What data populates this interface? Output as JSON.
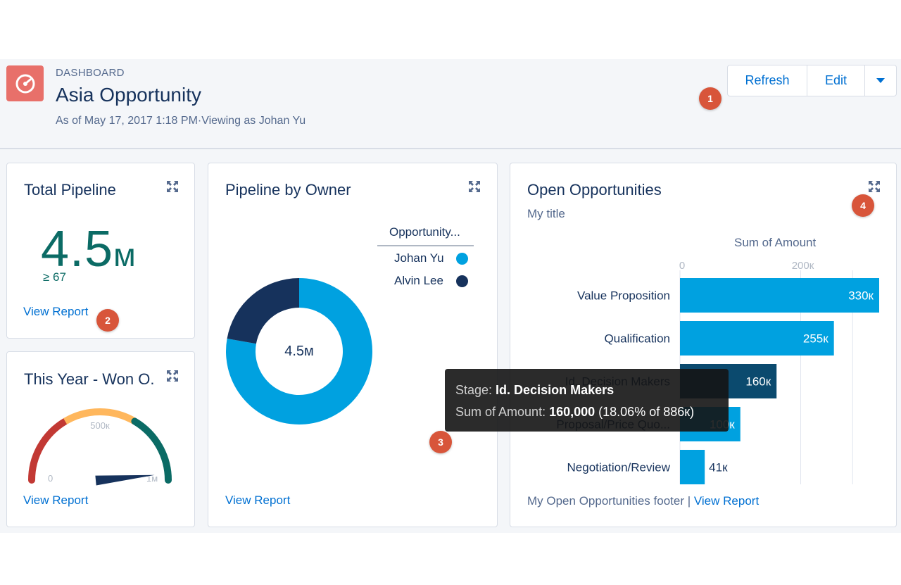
{
  "header": {
    "eyebrow": "DASHBOARD",
    "title": "Asia Opportunity",
    "subtitle": "As of May 17, 2017 1:18 PM·Viewing as Johan Yu",
    "buttons": {
      "refresh": "Refresh",
      "edit": "Edit"
    }
  },
  "badges": [
    "1",
    "2",
    "3",
    "4"
  ],
  "cards": {
    "total_pipeline": {
      "title": "Total Pipeline",
      "value": "4.5",
      "unit": "м",
      "sub_value": "≥ 67",
      "link": "View Report"
    },
    "won": {
      "title": "This Year - Won O.",
      "link": "View Report",
      "gauge": {
        "min_label": "0",
        "mid_label": "500к",
        "max_label": "1м",
        "value_fraction": 0.97
      }
    },
    "pipeline_by_owner": {
      "title": "Pipeline by Owner",
      "center_label": "4.5м",
      "legend_title": "Opportunity...",
      "link": "View Report"
    },
    "open_opps": {
      "title": "Open Opportunities",
      "subtitle": "My title",
      "footer": "My Open Opportunities footer | ",
      "link": "View Report"
    }
  },
  "tooltip": {
    "stage_label": "Stage: ",
    "stage_value": "Id. Decision Makers",
    "sum_label": "Sum of Amount: ",
    "sum_value": "160,000",
    "sum_note": " (18.06% of 886к)"
  },
  "colors": {
    "accent": "#0070d2",
    "bar": "#00a1e0",
    "bar_dark": "#16325c",
    "teal": "#0b6b65",
    "badge": "#d8553a",
    "dashboard_icon": "#e8706a"
  },
  "chart_data": [
    {
      "type": "pie",
      "donut": true,
      "title": "Pipeline by Owner",
      "legend_title": "Opportunity...",
      "legend_position": "top-right",
      "series": [
        {
          "name": "Johan Yu",
          "value": 3.5,
          "color": "#00a1e0"
        },
        {
          "name": "Alvin Lee",
          "value": 1.0,
          "color": "#16325c"
        }
      ],
      "center_label": "4.5м"
    },
    {
      "type": "bar",
      "orientation": "horizontal",
      "title": "Open Opportunities",
      "xlabel": "Sum of Amount",
      "ticks": [
        "0",
        "200к"
      ],
      "xlim": [
        0,
        330000
      ],
      "grid": true,
      "categories": [
        "Value Proposition",
        "Qualification",
        "Id. Decision Makers",
        "Proposal/Price Quo...",
        "Negotiation/Review"
      ],
      "values": [
        330000,
        255000,
        160000,
        100000,
        41000
      ],
      "value_labels": [
        "330к",
        "255к",
        "160к",
        "100к",
        "41к"
      ],
      "highlighted_index": 2
    }
  ]
}
